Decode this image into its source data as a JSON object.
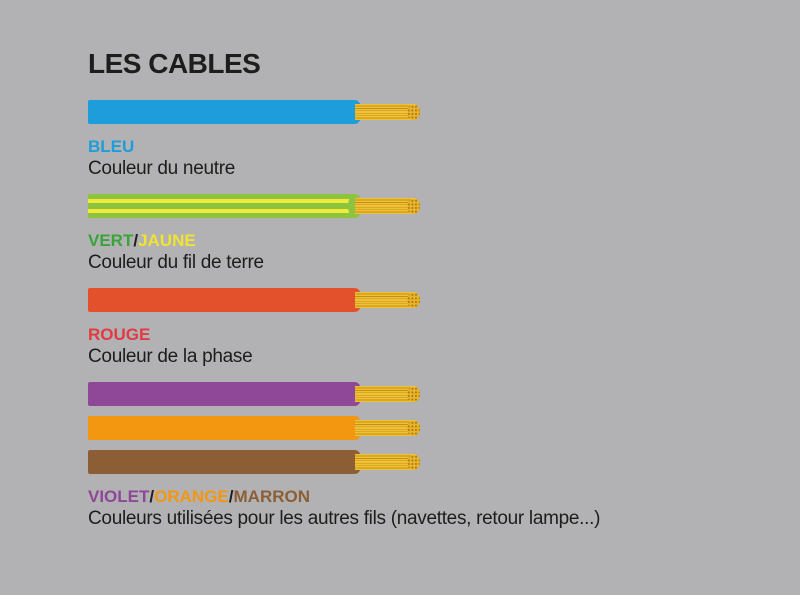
{
  "title": "LES CABLES",
  "colors": {
    "background": "#b2b2b4",
    "text": "#1d1d1b",
    "blue": "#1d9dd9",
    "green_stripe": "#8cc440",
    "yellow_stripe": "#f1ea3d",
    "green_text": "#3aa43a",
    "yellow_text": "#f0e431",
    "red_cable": "#e2512b",
    "red_text": "#e03b41",
    "violet": "#8f4797",
    "orange": "#f39711",
    "brown": "#8c5e36",
    "copper": "#f0c232",
    "copper_line": "#c28e1e",
    "copper_cap": "#e9b32b",
    "copper_dot": "#a87816"
  },
  "groups": [
    {
      "name": "neutre",
      "cable_colors": [
        "bleu"
      ],
      "label_parts": [
        "BLEU"
      ],
      "description": "Couleur du neutre"
    },
    {
      "name": "terre",
      "cable_colors": [
        "vert/jaune"
      ],
      "stripes": [
        "vert",
        "jaune",
        "vert",
        "jaune",
        "vert"
      ],
      "label_parts": [
        "VERT",
        "/",
        "JAUNE"
      ],
      "description": "Couleur du fil de terre"
    },
    {
      "name": "phase",
      "cable_colors": [
        "rouge"
      ],
      "label_parts": [
        "ROUGE"
      ],
      "description": "Couleur de la phase"
    },
    {
      "name": "autres-fils",
      "cable_colors": [
        "violet",
        "orange",
        "marron"
      ],
      "label_parts": [
        "VIOLET",
        "/",
        "ORANGE",
        "/",
        "MARRON"
      ],
      "description": "Couleurs utilisées pour les autres fils (navettes, retour lampe...)"
    }
  ]
}
